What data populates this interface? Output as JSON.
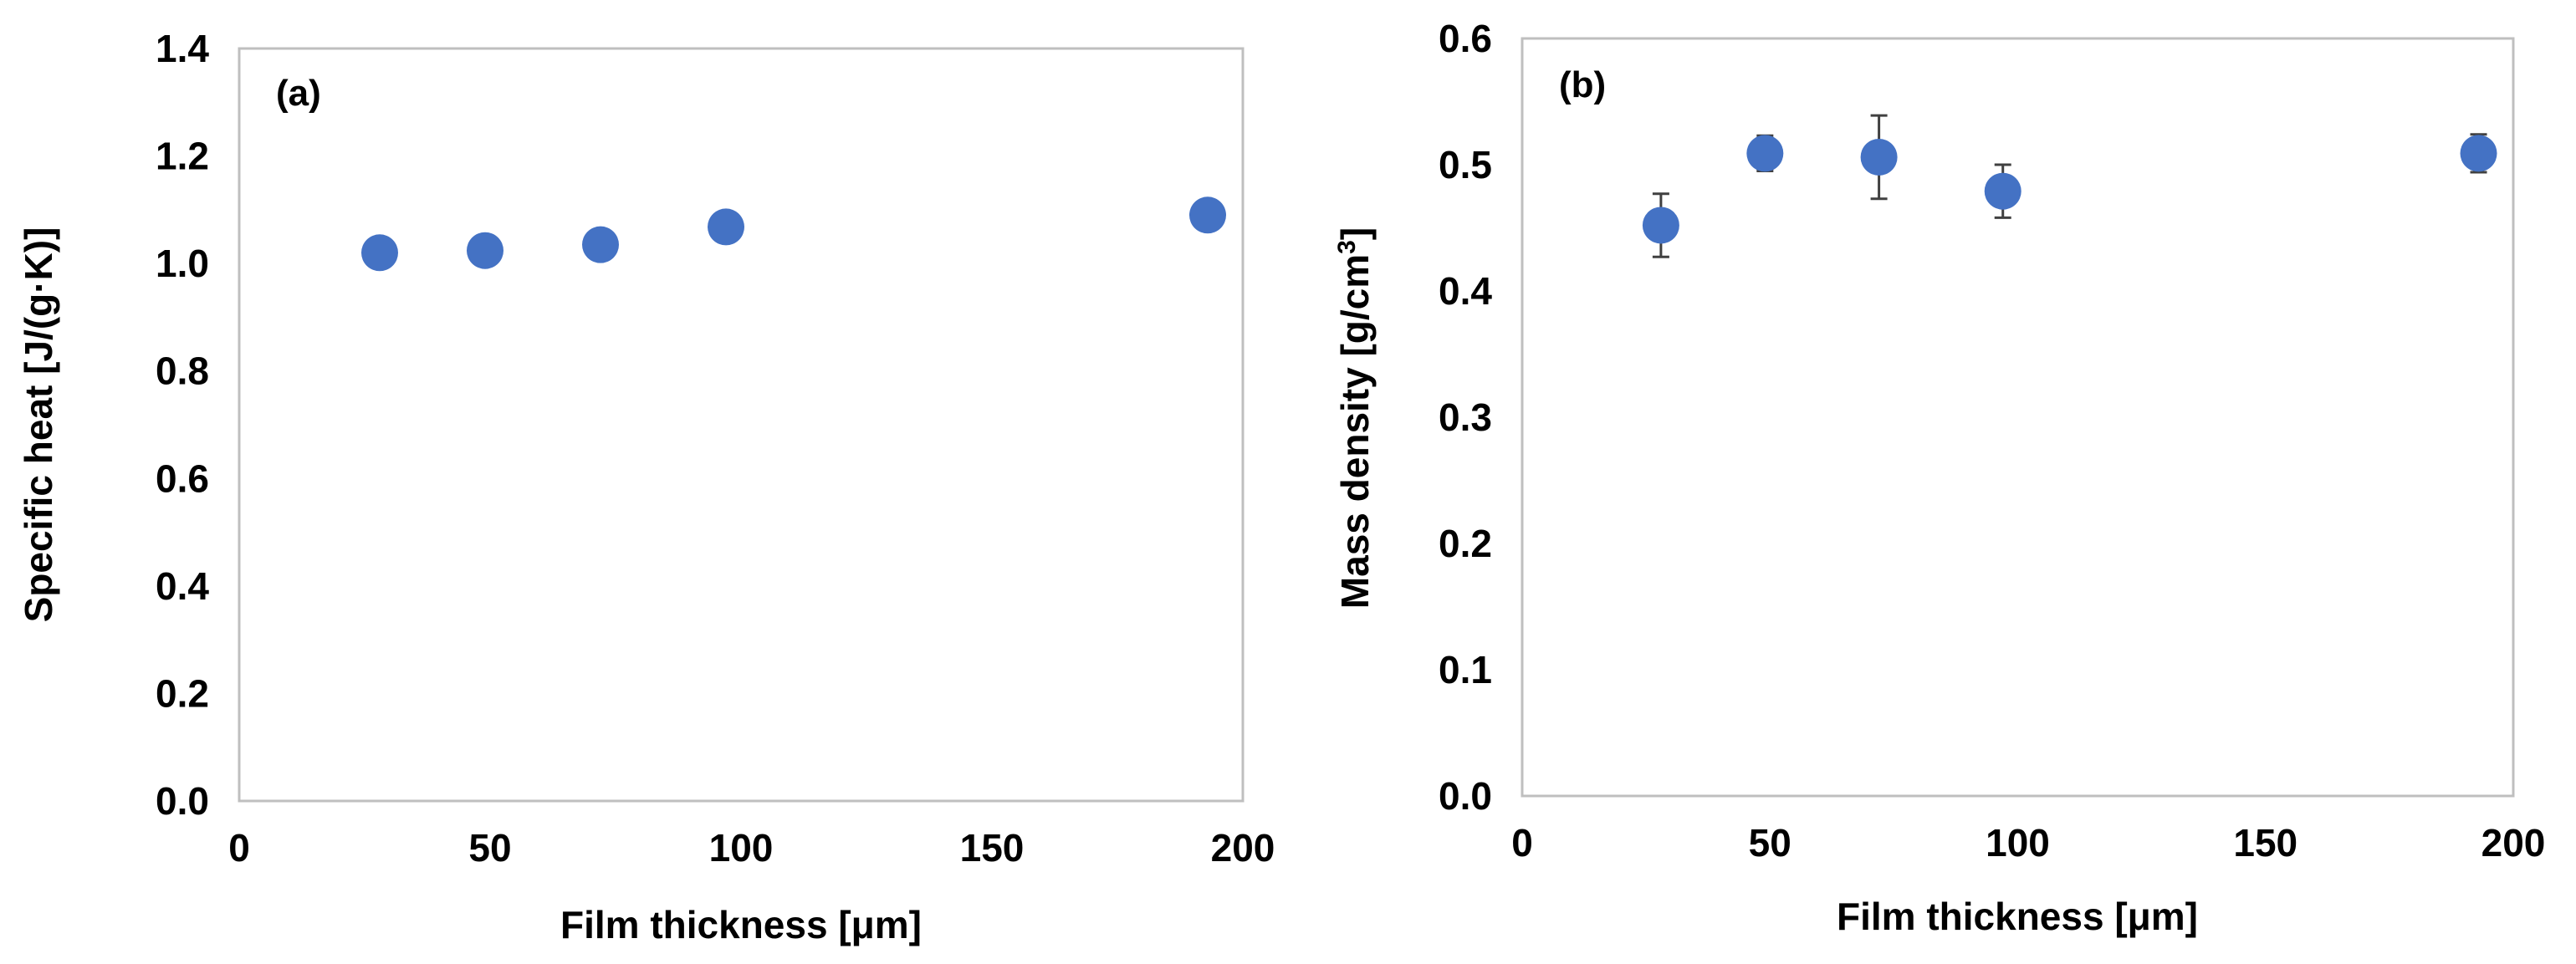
{
  "chart_data": [
    {
      "panel_label": "(a)",
      "type": "scatter",
      "xlabel": "Film thickness [μm]",
      "ylabel": "Specific heat [J/(g·K)]",
      "xlim": [
        0,
        200
      ],
      "ylim": [
        0,
        1.4
      ],
      "xticks": [
        "0",
        "50",
        "100",
        "150",
        "200"
      ],
      "yticks": [
        "0.0",
        "0.2",
        "0.4",
        "0.6",
        "0.8",
        "1.0",
        "1.2",
        "1.4"
      ],
      "grid": false,
      "marker_color": "#4472C4",
      "series": [
        {
          "name": "Specific heat",
          "x": [
            28,
            49,
            72,
            97,
            193
          ],
          "y": [
            1.02,
            1.024,
            1.035,
            1.068,
            1.09
          ]
        }
      ]
    },
    {
      "panel_label": "(b)",
      "type": "scatter",
      "xlabel": "Film thickness [μm]",
      "ylabel": "Mass density [g/cm",
      "ylabel_sup": "3",
      "ylabel_end": "]",
      "xlim": [
        0,
        200
      ],
      "ylim": [
        0,
        0.6
      ],
      "xticks": [
        "0",
        "50",
        "100",
        "150",
        "200"
      ],
      "yticks": [
        "0.0",
        "0.1",
        "0.2",
        "0.3",
        "0.4",
        "0.5",
        "0.6"
      ],
      "grid": false,
      "marker_color": "#4472C4",
      "error_color": "#404040",
      "series": [
        {
          "name": "Mass density",
          "x": [
            28,
            49,
            72,
            97,
            193
          ],
          "y": [
            0.452,
            0.509,
            0.506,
            0.479,
            0.509
          ],
          "yerr": [
            0.025,
            0.014,
            0.033,
            0.021,
            0.015
          ]
        }
      ]
    }
  ]
}
